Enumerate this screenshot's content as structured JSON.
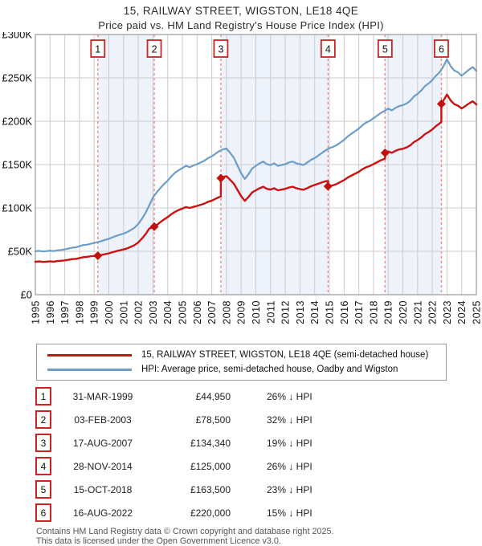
{
  "header": {
    "title": "15, RAILWAY STREET, WIGSTON, LE18 4QE",
    "subtitle": "Price paid vs. HM Land Registry's House Price Index (HPI)"
  },
  "colors": {
    "property_line": "#cc1111",
    "hpi_line": "#6d9dc9",
    "sale_marker": "#c40f0f",
    "dashed_sale_line": "#f08a8a",
    "band_fill": "#eef2fb",
    "grid": "#cccccc",
    "plot_border": "#999999",
    "badge_border": "#cc2222",
    "text": "#111111"
  },
  "chart_data": {
    "type": "line",
    "title": "Price paid vs. HM Land Registry's House Price Index (HPI)",
    "xlabel": "Year",
    "ylabel": "Price (GBP)",
    "unit": "GBP thousands",
    "xlim": [
      1995,
      2025
    ],
    "ylim": [
      0,
      300
    ],
    "grid": true,
    "legend_position": "below",
    "y_ticks": [
      {
        "v": 0,
        "label": "£0"
      },
      {
        "v": 50,
        "label": "£50K"
      },
      {
        "v": 100,
        "label": "£100K"
      },
      {
        "v": 150,
        "label": "£150K"
      },
      {
        "v": 200,
        "label": "£200K"
      },
      {
        "v": 250,
        "label": "£250K"
      },
      {
        "v": 300,
        "label": "£300K"
      }
    ],
    "x_ticks": [
      "1995",
      "1996",
      "1997",
      "1998",
      "1999",
      "2000",
      "2001",
      "2002",
      "2003",
      "2004",
      "2005",
      "2006",
      "2007",
      "2008",
      "2009",
      "2010",
      "2011",
      "2012",
      "2013",
      "2014",
      "2015",
      "2016",
      "2017",
      "2018",
      "2019",
      "2020",
      "2021",
      "2022",
      "2023",
      "2024",
      "2025"
    ],
    "bands": [
      [
        1999.25,
        2003.09
      ],
      [
        2007.62,
        2014.91
      ],
      [
        2018.79,
        2022.62
      ]
    ],
    "sale_markers": [
      {
        "n": "1",
        "year": 1999.25,
        "value": 44.95
      },
      {
        "n": "2",
        "year": 2003.09,
        "value": 78.5
      },
      {
        "n": "3",
        "year": 2007.62,
        "value": 134.34
      },
      {
        "n": "4",
        "year": 2014.91,
        "value": 125
      },
      {
        "n": "5",
        "year": 2018.79,
        "value": 163.5
      },
      {
        "n": "6",
        "year": 2022.62,
        "value": 220
      }
    ],
    "series": [
      {
        "name": "HPI: Average price, semi-detached house, Oadby and Wigston",
        "color": "#6d9dc9",
        "width": 2.2,
        "points": [
          [
            1995,
            50
          ],
          [
            1995.25,
            50.6
          ],
          [
            1995.5,
            49.8
          ],
          [
            1995.75,
            50.2
          ],
          [
            1996,
            50.8
          ],
          [
            1996.25,
            50.2
          ],
          [
            1996.5,
            51.2
          ],
          [
            1996.75,
            51.6
          ],
          [
            1997,
            52.2
          ],
          [
            1997.25,
            53.2
          ],
          [
            1997.5,
            54.2
          ],
          [
            1997.75,
            54.6
          ],
          [
            1998,
            55.8
          ],
          [
            1998.25,
            57.2
          ],
          [
            1998.5,
            57.6
          ],
          [
            1998.75,
            58.6
          ],
          [
            1999,
            59.6
          ],
          [
            1999.25,
            60.7
          ],
          [
            1999.5,
            61.8
          ],
          [
            1999.75,
            63.2
          ],
          [
            2000,
            64.4
          ],
          [
            2000.25,
            66.2
          ],
          [
            2000.5,
            67.8
          ],
          [
            2000.75,
            69.2
          ],
          [
            2001,
            70.4
          ],
          [
            2001.25,
            72.2
          ],
          [
            2001.5,
            74.6
          ],
          [
            2001.75,
            77.2
          ],
          [
            2002,
            81.5
          ],
          [
            2002.25,
            87.5
          ],
          [
            2002.5,
            94.5
          ],
          [
            2002.75,
            103
          ],
          [
            2003,
            112
          ],
          [
            2003.25,
            118
          ],
          [
            2003.5,
            123
          ],
          [
            2003.75,
            127.5
          ],
          [
            2004,
            131.5
          ],
          [
            2004.25,
            136.5
          ],
          [
            2004.5,
            140.5
          ],
          [
            2004.75,
            143.5
          ],
          [
            2005,
            146
          ],
          [
            2005.25,
            148.5
          ],
          [
            2005.5,
            147
          ],
          [
            2005.75,
            149
          ],
          [
            2006,
            150.5
          ],
          [
            2006.25,
            152.5
          ],
          [
            2006.5,
            154.5
          ],
          [
            2006.75,
            157.5
          ],
          [
            2007,
            159.5
          ],
          [
            2007.25,
            162.5
          ],
          [
            2007.5,
            165.5
          ],
          [
            2007.75,
            167.5
          ],
          [
            2008,
            168.5
          ],
          [
            2008.25,
            163.5
          ],
          [
            2008.5,
            158
          ],
          [
            2008.75,
            149
          ],
          [
            2009,
            140
          ],
          [
            2009.25,
            133.5
          ],
          [
            2009.5,
            139
          ],
          [
            2009.75,
            145.5
          ],
          [
            2010,
            148.5
          ],
          [
            2010.25,
            151.5
          ],
          [
            2010.5,
            153.5
          ],
          [
            2010.75,
            150.5
          ],
          [
            2011,
            149.5
          ],
          [
            2011.25,
            151.5
          ],
          [
            2011.5,
            148.5
          ],
          [
            2011.75,
            149.5
          ],
          [
            2012,
            150.5
          ],
          [
            2012.25,
            152.5
          ],
          [
            2012.5,
            153.5
          ],
          [
            2012.75,
            151.5
          ],
          [
            2013,
            150.5
          ],
          [
            2013.25,
            149.5
          ],
          [
            2013.5,
            152.5
          ],
          [
            2013.75,
            155.5
          ],
          [
            2014,
            157.5
          ],
          [
            2014.25,
            160.5
          ],
          [
            2014.5,
            163.5
          ],
          [
            2014.75,
            166.5
          ],
          [
            2015,
            169
          ],
          [
            2015.25,
            170.5
          ],
          [
            2015.5,
            172.5
          ],
          [
            2015.75,
            175.5
          ],
          [
            2016,
            178.5
          ],
          [
            2016.25,
            182.5
          ],
          [
            2016.5,
            185.5
          ],
          [
            2016.75,
            188.5
          ],
          [
            2017,
            191.5
          ],
          [
            2017.25,
            195.5
          ],
          [
            2017.5,
            198.5
          ],
          [
            2017.75,
            200.5
          ],
          [
            2018,
            203.5
          ],
          [
            2018.25,
            206.5
          ],
          [
            2018.5,
            209.5
          ],
          [
            2018.75,
            212
          ],
          [
            2019,
            214.5
          ],
          [
            2019.25,
            212.5
          ],
          [
            2019.5,
            215.5
          ],
          [
            2019.75,
            217.5
          ],
          [
            2020,
            218.5
          ],
          [
            2020.25,
            220.5
          ],
          [
            2020.5,
            223.5
          ],
          [
            2020.75,
            228.5
          ],
          [
            2021,
            231.5
          ],
          [
            2021.25,
            235.5
          ],
          [
            2021.5,
            240.5
          ],
          [
            2021.75,
            243.5
          ],
          [
            2022,
            247.5
          ],
          [
            2022.25,
            252.5
          ],
          [
            2022.5,
            256.5
          ],
          [
            2022.75,
            263
          ],
          [
            2023,
            271.5
          ],
          [
            2023.25,
            263.5
          ],
          [
            2023.5,
            258.5
          ],
          [
            2023.75,
            256.5
          ],
          [
            2024,
            252.5
          ],
          [
            2024.25,
            256
          ],
          [
            2024.5,
            259.5
          ],
          [
            2024.75,
            262.5
          ],
          [
            2025,
            258
          ]
        ]
      },
      {
        "name": "15, RAILWAY STREET, WIGSTON, LE18 4QE (semi-detached house)",
        "color": "#cc1111",
        "width": 2.4,
        "points": [
          [
            1995,
            38
          ],
          [
            1995.25,
            38.3
          ],
          [
            1995.5,
            37.8
          ],
          [
            1995.75,
            38.1
          ],
          [
            1996,
            38.5
          ],
          [
            1996.25,
            38.1
          ],
          [
            1996.5,
            38.8
          ],
          [
            1996.75,
            39.1
          ],
          [
            1997,
            39.5
          ],
          [
            1997.25,
            40.2
          ],
          [
            1997.5,
            41
          ],
          [
            1997.75,
            41.3
          ],
          [
            1998,
            42.2
          ],
          [
            1998.25,
            43.2
          ],
          [
            1998.5,
            43.6
          ],
          [
            1998.75,
            44.3
          ],
          [
            1999,
            44.6
          ],
          [
            1999.25,
            44.95
          ],
          [
            1999.5,
            45.8
          ],
          [
            1999.75,
            46.8
          ],
          [
            2000,
            47.7
          ],
          [
            2000.25,
            49
          ],
          [
            2000.5,
            50.2
          ],
          [
            2000.75,
            51.2
          ],
          [
            2001,
            52.1
          ],
          [
            2001.25,
            53.4
          ],
          [
            2001.5,
            55.2
          ],
          [
            2001.75,
            57.1
          ],
          [
            2002,
            60.3
          ],
          [
            2002.25,
            64.7
          ],
          [
            2002.5,
            69.9
          ],
          [
            2002.75,
            76.2
          ],
          [
            2003.09,
            78.5
          ],
          [
            2003.25,
            80.2
          ],
          [
            2003.5,
            83.6
          ],
          [
            2003.75,
            86.7
          ],
          [
            2004,
            89.4
          ],
          [
            2004.25,
            92.8
          ],
          [
            2004.5,
            95.5
          ],
          [
            2004.75,
            97.6
          ],
          [
            2005,
            99.3
          ],
          [
            2005.25,
            101
          ],
          [
            2005.5,
            100
          ],
          [
            2005.75,
            101.3
          ],
          [
            2006,
            102.3
          ],
          [
            2006.25,
            103.7
          ],
          [
            2006.5,
            105
          ],
          [
            2006.75,
            107.1
          ],
          [
            2007,
            108.4
          ],
          [
            2007.25,
            110.5
          ],
          [
            2007.5,
            112.5
          ],
          [
            2007.62,
            113.3
          ],
          [
            2007.62,
            134.34
          ],
          [
            2007.75,
            135.8
          ],
          [
            2008,
            136.6
          ],
          [
            2008.25,
            132.5
          ],
          [
            2008.5,
            128
          ],
          [
            2008.75,
            120.8
          ],
          [
            2009,
            113.5
          ],
          [
            2009.25,
            108.2
          ],
          [
            2009.5,
            112.7
          ],
          [
            2009.75,
            118
          ],
          [
            2010,
            120.4
          ],
          [
            2010.25,
            122.8
          ],
          [
            2010.5,
            124.4
          ],
          [
            2010.75,
            122
          ],
          [
            2011,
            121.2
          ],
          [
            2011.25,
            122.8
          ],
          [
            2011.5,
            120.4
          ],
          [
            2011.75,
            121.2
          ],
          [
            2012,
            122
          ],
          [
            2012.25,
            123.6
          ],
          [
            2012.5,
            124.4
          ],
          [
            2012.75,
            122.8
          ],
          [
            2013,
            121.8
          ],
          [
            2013.25,
            121
          ],
          [
            2013.5,
            123
          ],
          [
            2013.75,
            125
          ],
          [
            2014,
            126.5
          ],
          [
            2014.25,
            128
          ],
          [
            2014.5,
            129.5
          ],
          [
            2014.75,
            130.8
          ],
          [
            2014.91,
            131
          ],
          [
            2014.91,
            125
          ],
          [
            2015,
            125.1
          ],
          [
            2015.25,
            126.2
          ],
          [
            2015.5,
            127.7
          ],
          [
            2015.75,
            129.9
          ],
          [
            2016,
            132.1
          ],
          [
            2016.25,
            135.1
          ],
          [
            2016.5,
            137.3
          ],
          [
            2016.75,
            139.5
          ],
          [
            2017,
            141.7
          ],
          [
            2017.25,
            144.7
          ],
          [
            2017.5,
            146.9
          ],
          [
            2017.75,
            148.4
          ],
          [
            2018,
            150.6
          ],
          [
            2018.25,
            152.8
          ],
          [
            2018.5,
            155
          ],
          [
            2018.79,
            156.9
          ],
          [
            2018.79,
            163.5
          ],
          [
            2019,
            165.2
          ],
          [
            2019.25,
            163.6
          ],
          [
            2019.5,
            165.9
          ],
          [
            2019.75,
            167.5
          ],
          [
            2020,
            168.2
          ],
          [
            2020.25,
            169.8
          ],
          [
            2020.5,
            172.1
          ],
          [
            2020.75,
            175.9
          ],
          [
            2021,
            178.3
          ],
          [
            2021.25,
            181.3
          ],
          [
            2021.5,
            185.2
          ],
          [
            2021.75,
            187.5
          ],
          [
            2022,
            190.6
          ],
          [
            2022.25,
            194.4
          ],
          [
            2022.5,
            197.5
          ],
          [
            2022.62,
            199.3
          ],
          [
            2022.62,
            220
          ],
          [
            2022.75,
            223.6
          ],
          [
            2023,
            230.8
          ],
          [
            2023.25,
            224
          ],
          [
            2023.5,
            219.7
          ],
          [
            2023.75,
            218
          ],
          [
            2024,
            214.6
          ],
          [
            2024.25,
            217.6
          ],
          [
            2024.5,
            220.6
          ],
          [
            2024.75,
            223.1
          ],
          [
            2025,
            219.3
          ]
        ]
      }
    ]
  },
  "legend": {
    "entries": [
      {
        "label": "15, RAILWAY STREET, WIGSTON, LE18 4QE (semi-detached house)",
        "color": "#cc1111"
      },
      {
        "label": "HPI: Average price, semi-detached house, Oadby and Wigston",
        "color": "#6d9dc9"
      }
    ]
  },
  "sales_table": {
    "rows": [
      {
        "num": "1",
        "date": "31-MAR-1999",
        "price": "£44,950",
        "vs_hpi": "26% ↓ HPI"
      },
      {
        "num": "2",
        "date": "03-FEB-2003",
        "price": "£78,500",
        "vs_hpi": "32% ↓ HPI"
      },
      {
        "num": "3",
        "date": "17-AUG-2007",
        "price": "£134,340",
        "vs_hpi": "19% ↓ HPI"
      },
      {
        "num": "4",
        "date": "28-NOV-2014",
        "price": "£125,000",
        "vs_hpi": "26% ↓ HPI"
      },
      {
        "num": "5",
        "date": "15-OCT-2018",
        "price": "£163,500",
        "vs_hpi": "23% ↓ HPI"
      },
      {
        "num": "6",
        "date": "16-AUG-2022",
        "price": "£220,000",
        "vs_hpi": "15% ↓ HPI"
      }
    ]
  },
  "footer": {
    "line1": "Contains HM Land Registry data © Crown copyright and database right 2025.",
    "line2": "This data is licensed under the Open Government Licence v3.0."
  }
}
